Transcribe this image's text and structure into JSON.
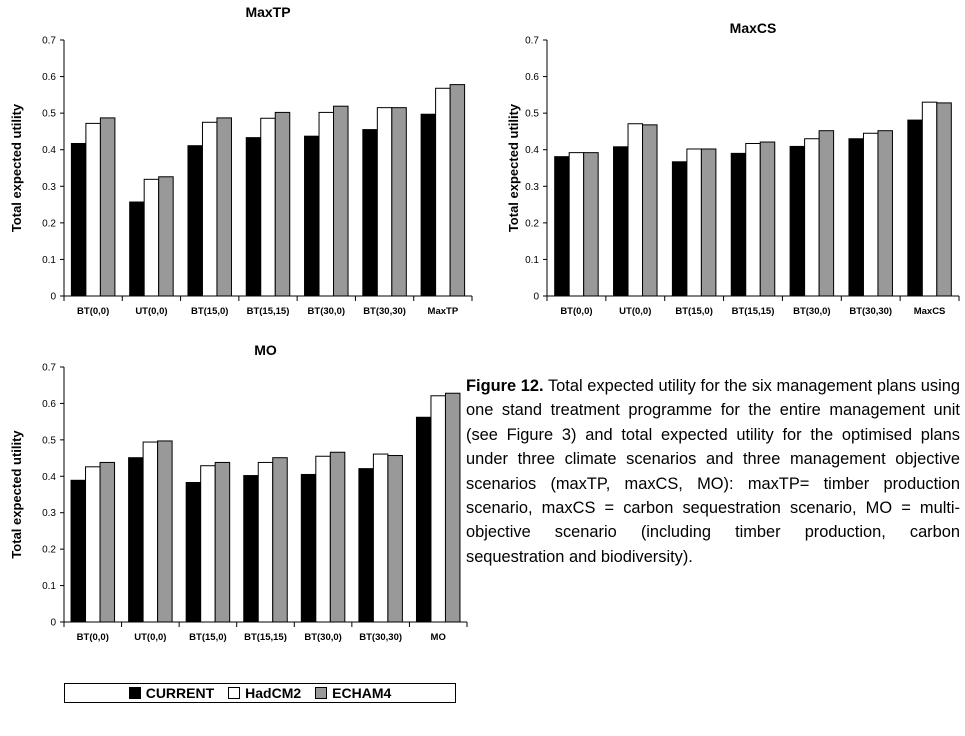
{
  "chart_data": [
    {
      "type": "bar",
      "title": "MaxTP",
      "ylabel": "Total expected utility",
      "ylim": [
        0,
        0.7
      ],
      "yticks": [
        "0",
        "0.1",
        "0.2",
        "0.3",
        "0.4",
        "0.5",
        "0.6",
        "0.7"
      ],
      "categories": [
        "BT(0,0)",
        "UT(0,0)",
        "BT(15,0)",
        "BT(15,15)",
        "BT(30,0)",
        "BT(30,30)",
        "MaxTP"
      ],
      "series": [
        {
          "name": "CURRENT",
          "values": [
            0.417,
            0.257,
            0.411,
            0.433,
            0.437,
            0.455,
            0.497
          ]
        },
        {
          "name": "HadCM2",
          "values": [
            0.472,
            0.319,
            0.475,
            0.486,
            0.502,
            0.515,
            0.568
          ]
        },
        {
          "name": "ECHAM4",
          "values": [
            0.487,
            0.326,
            0.487,
            0.502,
            0.519,
            0.515,
            0.578
          ]
        }
      ]
    },
    {
      "type": "bar",
      "title": "MaxCS",
      "ylabel": "Total expected utility",
      "ylim": [
        0,
        0.7
      ],
      "yticks": [
        "0",
        "0.1",
        "0.2",
        "0.3",
        "0.4",
        "0.5",
        "0.6",
        "0.7"
      ],
      "categories": [
        "BT(0,0)",
        "UT(0,0)",
        "BT(15,0)",
        "BT(15,15)",
        "BT(30,0)",
        "BT(30,30)",
        "MaxCS"
      ],
      "series": [
        {
          "name": "CURRENT",
          "values": [
            0.381,
            0.408,
            0.367,
            0.39,
            0.409,
            0.43,
            0.481
          ]
        },
        {
          "name": "HadCM2",
          "values": [
            0.392,
            0.471,
            0.402,
            0.417,
            0.43,
            0.445,
            0.53
          ]
        },
        {
          "name": "ECHAM4",
          "values": [
            0.392,
            0.468,
            0.402,
            0.421,
            0.452,
            0.452,
            0.528
          ]
        }
      ]
    },
    {
      "type": "bar",
      "title": "MO",
      "ylabel": "Total expected utility",
      "ylim": [
        0,
        0.7
      ],
      "yticks": [
        "0",
        "0.1",
        "0.2",
        "0.3",
        "0.4",
        "0.5",
        "0.6",
        "0.7"
      ],
      "categories": [
        "BT(0,0)",
        "UT(0,0)",
        "BT(15,0)",
        "BT(15,15)",
        "BT(30,0)",
        "BT(30,30)",
        "MO"
      ],
      "series": [
        {
          "name": "CURRENT",
          "values": [
            0.389,
            0.451,
            0.383,
            0.402,
            0.405,
            0.421,
            0.562
          ]
        },
        {
          "name": "HadCM2",
          "values": [
            0.426,
            0.494,
            0.429,
            0.438,
            0.455,
            0.461,
            0.621
          ]
        },
        {
          "name": "ECHAM4",
          "values": [
            0.438,
            0.497,
            0.438,
            0.451,
            0.466,
            0.457,
            0.628
          ]
        }
      ]
    }
  ],
  "legend": [
    {
      "label": "CURRENT",
      "color": "#000000"
    },
    {
      "label": "HadCM2",
      "color": "#ffffff"
    },
    {
      "label": "ECHAM4",
      "color": "#999999"
    }
  ],
  "caption": {
    "lead": "Figure 12.",
    "text": " Total expected utility for the six management plans using one stand treatment programme for the entire management unit (see Figure 3) and total expected utility for the optimised plans under three climate scenarios and three management objective scenarios (maxTP, maxCS, MO): maxTP= timber production scenario, maxCS = carbon sequestration scenario, MO = multi-objective scenario (including timber production, carbon sequestration and biodiversity)."
  }
}
